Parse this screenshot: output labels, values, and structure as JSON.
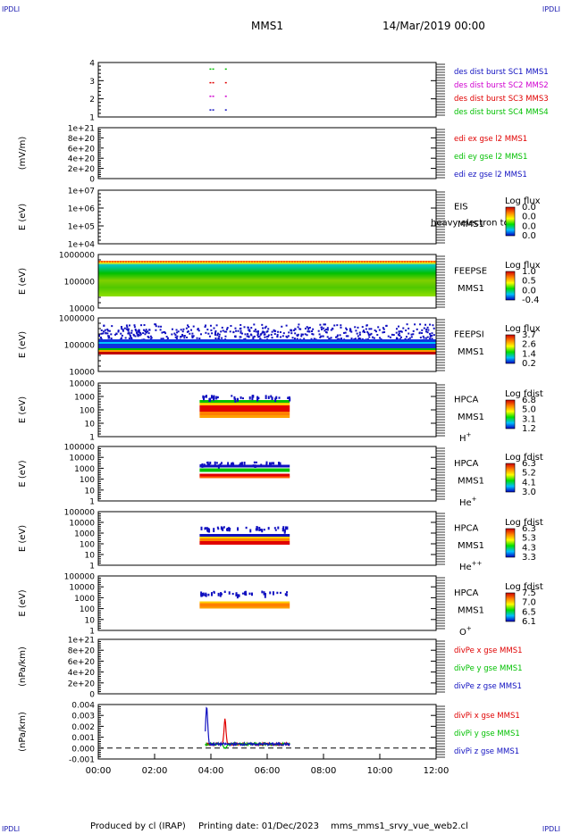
{
  "header": {
    "corner_tl": "IPDLI",
    "corner_tr": "IPDLI",
    "corner_bl": "IPDLI",
    "corner_br": "IPDLI",
    "spacecraft": "MMS1",
    "date": "14/Mar/2019 00:00"
  },
  "footer": {
    "produced_by": "Produced by cl (IRAP)",
    "printing_date": "Printing date: 01/Dec/2023",
    "script": "mms_mms1_srvy_vue_web2.cl"
  },
  "colors": {
    "red": "#e00000",
    "magenta": "#d000d0",
    "green": "#00c000",
    "blue": "#1010c0",
    "orange": "#ff9900",
    "cyan": "#00c8c8"
  },
  "chart_data": {
    "type": "stacked-timeseries",
    "x_ticks": [
      "00:00",
      "02:00",
      "04:00",
      "06:00",
      "08:00",
      "10:00",
      "12:00"
    ],
    "x_range_hours": [
      0,
      12
    ],
    "panels": [
      {
        "id": "des-dist",
        "type": "scatter",
        "ylabel": "",
        "y_ticks": [
          "4",
          "3",
          "2",
          "1"
        ],
        "ylim": [
          0.5,
          4.5
        ],
        "series": [
          {
            "name": "des dist burst SC1 MMS1",
            "color": "#1010c0",
            "y": 1,
            "x_hours": [
              3.95,
              4.05,
              4.5
            ]
          },
          {
            "name": "des dist burst SC2 MMS2",
            "color": "#d000d0",
            "y": 2,
            "x_hours": [
              3.95,
              4.05,
              4.5
            ]
          },
          {
            "name": "des dist burst SC3 MMS3",
            "color": "#e00000",
            "y": 3,
            "x_hours": [
              3.95,
              4.05,
              4.5
            ]
          },
          {
            "name": "des dist burst SC4 MMS4",
            "color": "#00c000",
            "y": 4,
            "x_hours": [
              3.95,
              4.05,
              4.5
            ]
          }
        ]
      },
      {
        "id": "edi",
        "type": "line",
        "ylabel": "(mV/m)",
        "y_ticks": [
          "1e+21",
          "8e+20",
          "6e+20",
          "4e+20",
          "2e+20",
          "0"
        ],
        "series": [
          {
            "name": "edi ex gse l2 MMS1",
            "color": "#e00000"
          },
          {
            "name": "edi ey gse l2 MMS1",
            "color": "#00c000"
          },
          {
            "name": "edi ez gse l2 MMS1",
            "color": "#1010c0"
          }
        ]
      },
      {
        "id": "eis",
        "type": "heatmap",
        "ylabel": "E (eV)",
        "y_ticks": [
          "1e+07",
          "1e+06",
          "1e+05",
          "1e+04"
        ],
        "instrument": "EIS",
        "spacecraft": "MMS1",
        "species": "",
        "overlay_text": "heavy electron to",
        "colorbar_title": "Log flux",
        "colorbar_ticks": [
          "0.0",
          "0.0",
          "0.0",
          "0.0"
        ]
      },
      {
        "id": "feepse",
        "type": "heatmap",
        "ylabel": "E (eV)",
        "y_ticks": [
          "1000000",
          "100000",
          "10000"
        ],
        "instrument": "FEEPSE",
        "spacecraft": "MMS1",
        "species": "",
        "colorbar_title": "Log flux",
        "colorbar_ticks": [
          "1.0",
          "0.5",
          "0.0",
          "-0.4"
        ]
      },
      {
        "id": "feepsi",
        "type": "heatmap",
        "ylabel": "E (eV)",
        "y_ticks": [
          "1000000",
          "100000",
          "10000"
        ],
        "instrument": "FEEPSI",
        "spacecraft": "MMS1",
        "species": "",
        "colorbar_title": "Log flux",
        "colorbar_ticks": [
          "3.7",
          "2.6",
          "1.4",
          "0.2"
        ]
      },
      {
        "id": "hpca-h",
        "type": "heatmap",
        "ylabel": "E (eV)",
        "y_ticks": [
          "10000",
          "1000",
          "100",
          "10",
          "1"
        ],
        "instrument": "HPCA",
        "spacecraft": "MMS1",
        "species": "H",
        "species_sup": "+",
        "colorbar_title": "Log fdist",
        "colorbar_ticks": [
          "6.8",
          "5.0",
          "3.1",
          "1.2"
        ],
        "active_hours": [
          3.6,
          6.8
        ]
      },
      {
        "id": "hpca-he",
        "type": "heatmap",
        "ylabel": "E (eV)",
        "y_ticks": [
          "100000",
          "10000",
          "1000",
          "100",
          "10",
          "1"
        ],
        "instrument": "HPCA",
        "spacecraft": "MMS1",
        "species": "He",
        "species_sup": "+",
        "colorbar_title": "Log fdist",
        "colorbar_ticks": [
          "6.3",
          "5.2",
          "4.1",
          "3.0"
        ],
        "active_hours": [
          3.6,
          6.8
        ]
      },
      {
        "id": "hpca-hepp",
        "type": "heatmap",
        "ylabel": "E (eV)",
        "y_ticks": [
          "100000",
          "10000",
          "1000",
          "100",
          "10",
          "1"
        ],
        "instrument": "HPCA",
        "spacecraft": "MMS1",
        "species": "He",
        "species_sup": "++",
        "colorbar_title": "Log fdist",
        "colorbar_ticks": [
          "6.3",
          "5.3",
          "4.3",
          "3.3"
        ],
        "active_hours": [
          3.6,
          6.8
        ]
      },
      {
        "id": "hpca-o",
        "type": "heatmap",
        "ylabel": "E (eV)",
        "y_ticks": [
          "100000",
          "10000",
          "1000",
          "100",
          "10",
          "1"
        ],
        "instrument": "HPCA",
        "spacecraft": "MMS1",
        "species": "O",
        "species_sup": "+",
        "colorbar_title": "Log fdist",
        "colorbar_ticks": [
          "7.5",
          "7.0",
          "6.5",
          "6.1"
        ],
        "active_hours": [
          3.6,
          6.8
        ]
      },
      {
        "id": "divpe",
        "type": "line",
        "ylabel": "(nPa/km)",
        "y_ticks": [
          "1e+21",
          "8e+20",
          "6e+20",
          "4e+20",
          "2e+20",
          "0"
        ],
        "series": [
          {
            "name": "divPe x gse MMS1",
            "color": "#e00000"
          },
          {
            "name": "divPe y gse MMS1",
            "color": "#00c000"
          },
          {
            "name": "divPe z gse MMS1",
            "color": "#1010c0"
          }
        ]
      },
      {
        "id": "divpi",
        "type": "line",
        "ylabel": "(nPa/km)",
        "y_ticks": [
          "0.004",
          "0.003",
          "0.002",
          "0.001",
          "0.000",
          "-0.001"
        ],
        "ylim": [
          -0.0015,
          0.004
        ],
        "series": [
          {
            "name": "divPi x gse MMS1",
            "color": "#e00000",
            "peak": {
              "x_hours": 4.5,
              "y": 0.0025
            }
          },
          {
            "name": "divPi y gse MMS1",
            "color": "#00c000",
            "peak": {
              "x_hours": 4.5,
              "y": -0.0005
            }
          },
          {
            "name": "divPi z gse MMS1",
            "color": "#1010c0",
            "peak": {
              "x_hours": 3.85,
              "y": 0.0038
            }
          }
        ]
      }
    ]
  }
}
